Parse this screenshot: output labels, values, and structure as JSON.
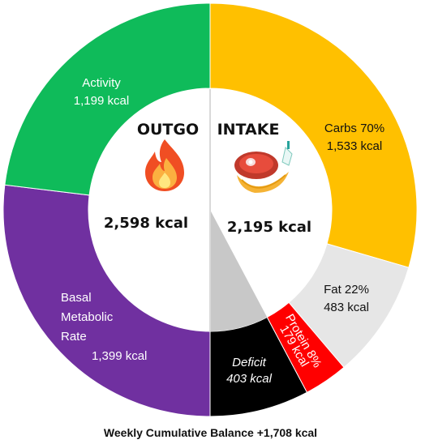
{
  "chart_data": {
    "type": "pie",
    "variant": "nested-donut",
    "outgo": {
      "label": "OUTGO",
      "total_text": "2,598 kcal",
      "total": 2598,
      "segments": [
        {
          "key": "activity",
          "lines": [
            "Activity",
            "1,199 kcal"
          ],
          "value": 1199,
          "color": "#0fbb5a"
        },
        {
          "key": "bmr",
          "lines": [
            "Basal",
            "Metabolic",
            "Rate",
            "1,399 kcal"
          ],
          "value": 1399,
          "color": "#7030a0"
        }
      ]
    },
    "intake": {
      "label": "INTAKE",
      "total_text": "2,195 kcal",
      "total": 2195,
      "segments": [
        {
          "key": "carbs",
          "lines": [
            "Carbs 70%",
            "1,533 kcal"
          ],
          "value": 1533,
          "percent": 70,
          "color": "#ffc000"
        },
        {
          "key": "fat",
          "lines": [
            "Fat 22%",
            "483 kcal"
          ],
          "value": 483,
          "percent": 22,
          "color": "#e6e6e6"
        },
        {
          "key": "protein",
          "lines": [
            "Protein 8%",
            "179 kcal"
          ],
          "value": 179,
          "percent": 8,
          "color": "#ff0000"
        }
      ],
      "deficit": {
        "lines": [
          "Deficit",
          "403 kcal"
        ],
        "value": 403,
        "color": "#000000",
        "wedge_color": "#c8c8c8"
      }
    },
    "footer": "Weekly Cumulative Balance +1,708 kcal"
  },
  "icons": {
    "outgo": "flame-icon",
    "intake": "steak-banana-icon"
  }
}
